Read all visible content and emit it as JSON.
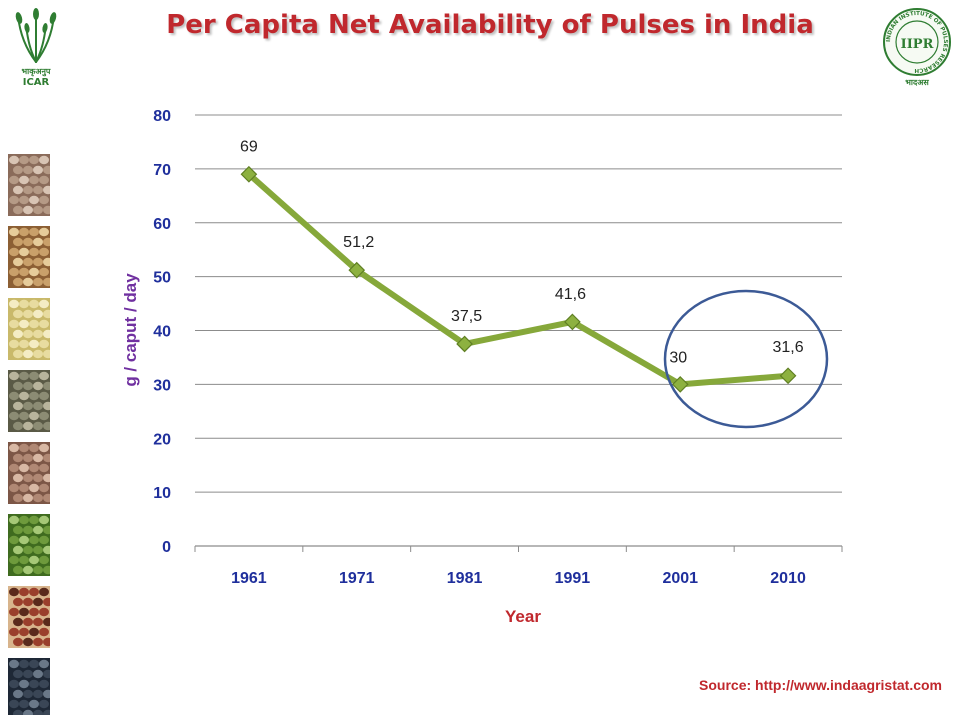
{
  "title": "Per Capita Net Availability of Pulses in India",
  "logos": {
    "left": {
      "name": "icar-logo",
      "caption_hindi": "भाकृअनुप",
      "caption": "ICAR"
    },
    "right": {
      "name": "iipr-logo",
      "ring_text": "INDIAN INSTITUTE OF PULSES RESEARCH",
      "monogram": "IIPR",
      "caption_hindi": "भादअस"
    }
  },
  "colors": {
    "title": "#c0282d",
    "axis_text": "#1f2f9c",
    "ylabel": "#7030a0",
    "xlabel": "#c0282d",
    "series_line": "#86a83a",
    "marker": "#8db140",
    "highlight_circle": "#3c5a96",
    "grid": "#8c8c8c"
  },
  "chart_data": {
    "type": "line",
    "categories": [
      "1961",
      "1971",
      "1981",
      "1991",
      "2001",
      "2010"
    ],
    "series": [
      {
        "values": [
          69,
          51.2,
          37.5,
          41.6,
          30,
          31.6
        ]
      }
    ],
    "data_labels": [
      "69",
      "51,2",
      "37,5",
      "41,6",
      "30",
      "31,6"
    ],
    "xlabel": "Year",
    "ylabel": "g / caput / day",
    "ylim": [
      0,
      80
    ],
    "yticks": [
      "0",
      "10",
      "20",
      "30",
      "40",
      "50",
      "60",
      "70",
      "80"
    ],
    "grid": true,
    "legend": "none",
    "annotation": "circle highlighting 2001 and 2010"
  },
  "source": "Source: http://www.indaagristat.com"
}
